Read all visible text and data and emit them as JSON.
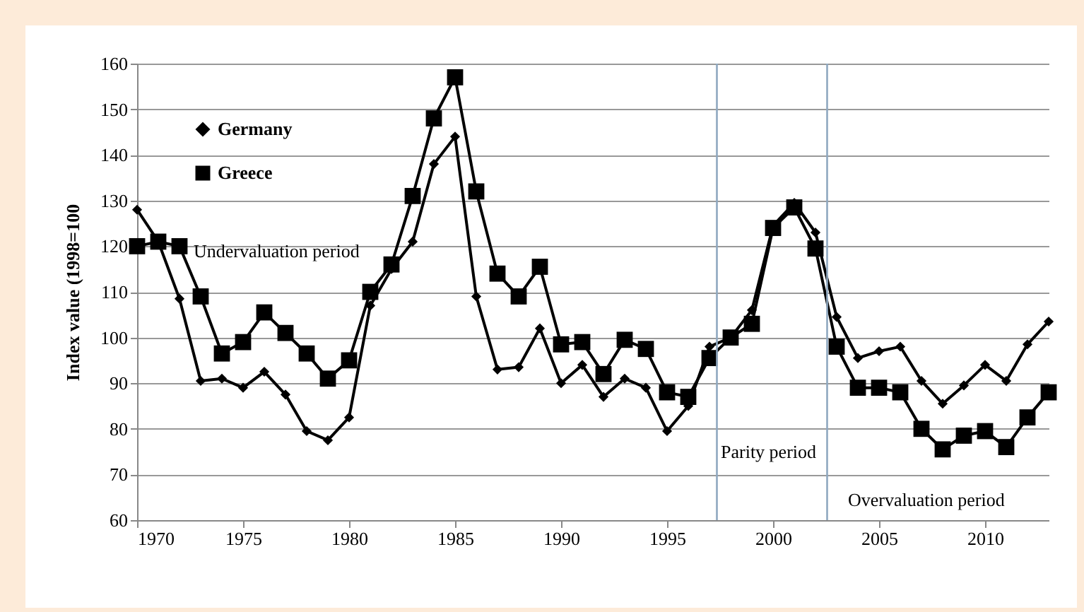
{
  "chart_data": {
    "type": "line",
    "ylabel": "Index value (1998=100",
    "x": [
      1970,
      1971,
      1972,
      1973,
      1974,
      1975,
      1976,
      1977,
      1978,
      1979,
      1980,
      1981,
      1982,
      1983,
      1984,
      1985,
      1986,
      1987,
      1988,
      1989,
      1990,
      1991,
      1992,
      1993,
      1994,
      1995,
      1996,
      1997,
      1998,
      1999,
      2000,
      2001,
      2002,
      2003,
      2004,
      2005,
      2006,
      2007,
      2008,
      2009,
      2010,
      2011,
      2012,
      2013
    ],
    "series": [
      {
        "name": "Germany",
        "color": "#000000",
        "marker": "diamond",
        "values": [
          128,
          121,
          108.5,
          90.5,
          91,
          89,
          92.5,
          87.5,
          79.5,
          77.5,
          82.5,
          107,
          115,
          121,
          138,
          144,
          109,
          93,
          93.5,
          102,
          90,
          94,
          87,
          91,
          89,
          79.5,
          85,
          98,
          100,
          106,
          124.5,
          129.5,
          123,
          104.5,
          95.5,
          97,
          98,
          90.5,
          85.5,
          89.5,
          94,
          90.5,
          98.5,
          103.5
        ]
      },
      {
        "name": "Greece",
        "color": "#000000",
        "marker": "square",
        "values": [
          120,
          121,
          120,
          109,
          96.5,
          99,
          105.5,
          101,
          96.5,
          91,
          95,
          110,
          116,
          131,
          148,
          157,
          132,
          114,
          109,
          115.5,
          98.5,
          99,
          92,
          99.5,
          97.5,
          88,
          87,
          95.5,
          100,
          103,
          124,
          128.5,
          119.5,
          98,
          89,
          89,
          88,
          80,
          75.5,
          78.5,
          79.5,
          76,
          82.5,
          88
        ]
      }
    ],
    "xlim": [
      1970,
      2013
    ],
    "xticks": [
      1970,
      1975,
      1980,
      1985,
      1990,
      1995,
      2000,
      2005,
      2010
    ],
    "ylim": [
      60,
      160
    ],
    "yticks": [
      60,
      70,
      80,
      90,
      100,
      110,
      120,
      130,
      140,
      150,
      160
    ],
    "grid": "y",
    "legend": "top left",
    "ref_lines": [
      {
        "axis": "x",
        "value": 1997.35,
        "color": "#8fa8c0"
      },
      {
        "axis": "x",
        "value": 2002.55,
        "color": "#8fa8c0"
      }
    ],
    "annotations": [
      "Undervaluation period",
      "Parity period",
      "Overvaluation  period"
    ]
  }
}
